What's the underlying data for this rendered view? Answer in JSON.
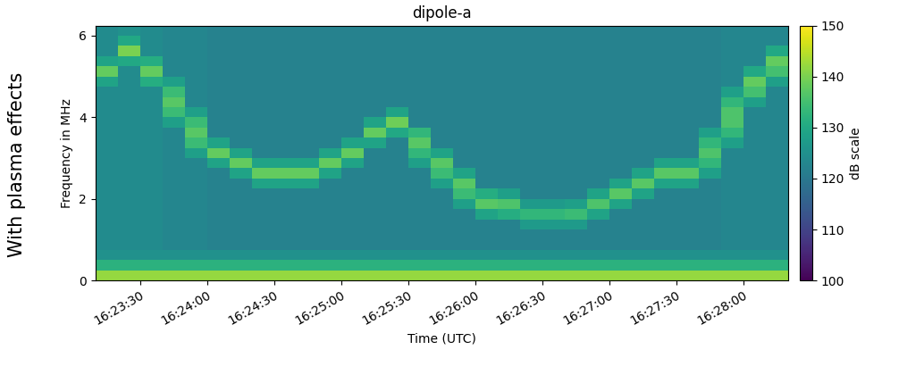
{
  "chart_data": {
    "type": "heatmap",
    "title": "dipole-a",
    "x_label": "Time (UTC)",
    "y_label": "Frequency in MHz",
    "annotation": "With plasma effects",
    "x": [
      "16:23:10",
      "16:23:20",
      "16:23:30",
      "16:23:40",
      "16:23:50",
      "16:24:00",
      "16:24:10",
      "16:24:20",
      "16:24:30",
      "16:24:40",
      "16:24:50",
      "16:25:00",
      "16:25:10",
      "16:25:20",
      "16:25:30",
      "16:25:40",
      "16:25:50",
      "16:26:00",
      "16:26:10",
      "16:26:20",
      "16:26:30",
      "16:26:40",
      "16:26:50",
      "16:27:00",
      "16:27:10",
      "16:27:20",
      "16:27:30",
      "16:27:40",
      "16:27:50",
      "16:28:00",
      "16:28:10",
      "16:28:20"
    ],
    "y": [
      0,
      0.25,
      0.5,
      0.75,
      1,
      1.25,
      1.5,
      1.75,
      2,
      2.25,
      2.5,
      2.75,
      3,
      3.25,
      3.5,
      3.75,
      4,
      4.25,
      4.5,
      4.75,
      5,
      5.25,
      5.5,
      5.75,
      6,
      6.25
    ],
    "xlim": [
      "16:23:10",
      "16:28:20"
    ],
    "xticks": [
      "16:23:30",
      "16:24:00",
      "16:24:30",
      "16:25:00",
      "16:25:30",
      "16:26:00",
      "16:26:30",
      "16:27:00",
      "16:27:30",
      "16:28:00"
    ],
    "ylim": [
      0,
      6.25
    ],
    "yticks": [
      0,
      2,
      4,
      6
    ],
    "colorbar": {
      "label": "dB scale",
      "lim": [
        100,
        150
      ],
      "ticks": [
        100,
        110,
        120,
        130,
        140,
        150
      ]
    },
    "cells": [
      [
        142,
        132,
        125,
        124,
        124,
        124,
        124,
        124,
        124,
        124,
        124,
        124,
        124,
        124,
        124,
        124,
        124,
        124,
        124,
        129,
        138,
        129,
        124,
        124,
        124
      ],
      [
        142,
        132,
        125,
        124,
        124,
        124,
        124,
        124,
        124,
        124,
        124,
        124,
        124,
        124,
        124,
        124,
        124,
        124,
        124,
        124,
        124,
        130,
        140,
        130,
        125
      ],
      [
        142,
        132,
        125,
        124,
        124,
        124,
        124,
        124,
        124,
        124,
        124,
        124,
        124,
        124,
        124,
        124,
        124,
        124,
        124,
        131,
        138,
        131,
        124,
        124,
        124
      ],
      [
        142,
        132,
        125,
        123,
        123,
        123,
        123,
        123,
        123,
        123,
        123,
        123,
        123,
        123,
        123,
        128,
        134,
        137,
        134,
        128,
        123,
        123,
        123,
        123,
        123
      ],
      [
        142,
        132,
        125,
        123,
        123,
        123,
        123,
        123,
        123,
        123,
        123,
        123,
        128,
        134,
        137,
        134,
        128,
        123,
        123,
        123,
        123,
        123,
        123,
        123,
        123
      ],
      [
        142,
        132,
        125,
        122,
        122,
        122,
        122,
        122,
        122,
        122,
        122,
        129,
        138,
        129,
        122,
        122,
        122,
        122,
        122,
        122,
        122,
        122,
        122,
        122,
        122
      ],
      [
        142,
        132,
        125,
        122,
        122,
        122,
        122,
        122,
        122,
        122,
        129,
        138,
        129,
        122,
        122,
        122,
        122,
        122,
        122,
        122,
        122,
        122,
        122,
        122,
        122
      ],
      [
        142,
        132,
        125,
        122,
        122,
        122,
        122,
        122,
        122,
        129,
        138,
        129,
        122,
        122,
        122,
        122,
        122,
        122,
        122,
        122,
        122,
        122,
        122,
        122,
        122
      ],
      [
        142,
        132,
        125,
        122,
        122,
        122,
        122,
        122,
        122,
        129,
        138,
        129,
        122,
        122,
        122,
        122,
        122,
        122,
        122,
        122,
        122,
        122,
        122,
        122,
        122
      ],
      [
        142,
        132,
        125,
        122,
        122,
        122,
        122,
        122,
        122,
        129,
        138,
        129,
        122,
        122,
        122,
        122,
        122,
        122,
        122,
        122,
        122,
        122,
        122,
        122,
        122
      ],
      [
        142,
        132,
        125,
        122,
        122,
        122,
        122,
        122,
        122,
        122,
        129,
        138,
        129,
        122,
        122,
        122,
        122,
        122,
        122,
        122,
        122,
        122,
        122,
        122,
        122
      ],
      [
        142,
        132,
        125,
        122,
        122,
        122,
        122,
        122,
        122,
        122,
        122,
        129,
        138,
        129,
        122,
        122,
        122,
        122,
        122,
        122,
        122,
        122,
        122,
        122,
        122
      ],
      [
        142,
        132,
        125,
        122,
        122,
        122,
        122,
        122,
        122,
        122,
        122,
        122,
        122,
        129,
        138,
        129,
        122,
        122,
        122,
        122,
        122,
        122,
        122,
        122,
        122
      ],
      [
        142,
        132,
        125,
        122,
        122,
        122,
        122,
        122,
        122,
        122,
        122,
        122,
        122,
        122,
        130,
        139,
        129,
        122,
        122,
        122,
        122,
        122,
        122,
        122,
        122
      ],
      [
        142,
        132,
        125,
        122,
        122,
        122,
        122,
        122,
        122,
        122,
        122,
        128,
        133,
        137,
        133,
        122,
        122,
        122,
        122,
        122,
        122,
        122,
        122,
        122,
        122
      ],
      [
        142,
        132,
        125,
        122,
        122,
        122,
        122,
        122,
        122,
        128,
        134,
        137,
        129,
        122,
        122,
        122,
        122,
        122,
        122,
        122,
        122,
        122,
        122,
        122,
        122
      ],
      [
        142,
        132,
        125,
        122,
        122,
        122,
        122,
        128,
        134,
        137,
        129,
        122,
        122,
        122,
        122,
        122,
        122,
        122,
        122,
        122,
        122,
        122,
        122,
        122,
        122
      ],
      [
        142,
        132,
        125,
        122,
        122,
        122,
        129,
        137,
        131,
        122,
        122,
        122,
        122,
        122,
        122,
        122,
        122,
        122,
        122,
        122,
        122,
        122,
        122,
        122,
        122
      ],
      [
        142,
        132,
        125,
        122,
        122,
        122,
        131,
        136,
        128,
        122,
        122,
        122,
        122,
        122,
        122,
        122,
        122,
        122,
        122,
        122,
        122,
        122,
        122,
        122,
        122
      ],
      [
        142,
        132,
        125,
        122,
        122,
        127,
        133,
        127,
        122,
        122,
        122,
        122,
        122,
        122,
        122,
        122,
        122,
        122,
        122,
        122,
        122,
        122,
        122,
        122,
        122
      ],
      [
        142,
        132,
        125,
        122,
        122,
        127,
        133,
        127,
        122,
        122,
        122,
        122,
        122,
        122,
        122,
        122,
        122,
        122,
        122,
        122,
        122,
        122,
        122,
        122,
        122
      ],
      [
        142,
        132,
        125,
        122,
        122,
        127,
        134,
        128,
        122,
        122,
        122,
        122,
        122,
        122,
        122,
        122,
        122,
        122,
        122,
        122,
        122,
        122,
        122,
        122,
        122
      ],
      [
        142,
        132,
        125,
        122,
        122,
        122,
        129,
        136,
        129,
        122,
        122,
        122,
        122,
        122,
        122,
        122,
        122,
        122,
        122,
        122,
        122,
        122,
        122,
        122,
        122
      ],
      [
        142,
        132,
        125,
        122,
        122,
        122,
        122,
        129,
        137,
        129,
        122,
        122,
        122,
        122,
        122,
        122,
        122,
        122,
        122,
        122,
        122,
        122,
        122,
        122,
        122
      ],
      [
        142,
        132,
        125,
        122,
        122,
        122,
        122,
        122,
        129,
        137,
        129,
        122,
        122,
        122,
        122,
        122,
        122,
        122,
        122,
        122,
        122,
        122,
        122,
        122,
        122
      ],
      [
        142,
        132,
        125,
        122,
        122,
        122,
        122,
        122,
        122,
        129,
        137,
        129,
        122,
        122,
        122,
        122,
        122,
        122,
        122,
        122,
        122,
        122,
        122,
        122,
        122
      ],
      [
        142,
        132,
        125,
        122,
        122,
        122,
        122,
        122,
        122,
        129,
        137,
        129,
        122,
        122,
        122,
        122,
        122,
        122,
        122,
        122,
        122,
        122,
        122,
        122,
        122
      ],
      [
        142,
        132,
        125,
        122,
        122,
        122,
        122,
        122,
        122,
        122,
        128,
        133,
        136,
        133,
        128,
        122,
        122,
        122,
        122,
        122,
        122,
        122,
        122,
        122,
        122
      ],
      [
        142,
        132,
        125,
        123,
        123,
        123,
        123,
        123,
        123,
        123,
        123,
        123,
        123,
        128,
        133,
        136,
        136,
        133,
        128,
        123,
        123,
        123,
        123,
        123,
        123
      ],
      [
        142,
        132,
        125,
        123,
        123,
        123,
        123,
        123,
        123,
        123,
        123,
        123,
        123,
        123,
        123,
        123,
        123,
        128,
        135,
        138,
        130,
        123,
        123,
        123,
        123
      ],
      [
        142,
        132,
        125,
        123,
        123,
        123,
        123,
        123,
        123,
        123,
        123,
        123,
        123,
        123,
        123,
        123,
        123,
        123,
        123,
        128,
        135,
        138,
        130,
        123,
        123
      ]
    ]
  }
}
